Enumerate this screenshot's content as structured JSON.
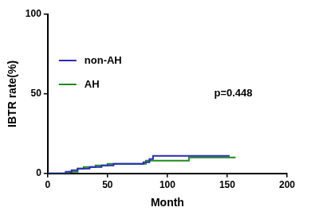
{
  "chart_data": {
    "type": "line",
    "x_label": "Month",
    "y_label": "IBTR rate(%)",
    "xlim": [
      0,
      200
    ],
    "xticks": [
      0,
      50,
      100,
      150,
      200
    ],
    "ylim": [
      0,
      100
    ],
    "yticks": [
      0,
      50,
      100
    ],
    "grid": false,
    "legend": "upper left",
    "annotations": [
      {
        "text": "p=0.448",
        "x": 139,
        "y": 50
      }
    ],
    "series": [
      {
        "name": "non-AH",
        "color": "#2a2ab8",
        "line_style": "stepped",
        "x": [
          0,
          15,
          20,
          25,
          35,
          45,
          55,
          80,
          85,
          88,
          152
        ],
        "values": [
          0,
          1,
          2,
          3,
          4,
          5,
          6,
          7,
          9,
          11,
          11
        ]
      },
      {
        "name": "AH",
        "color": "#1e8c1e",
        "line_style": "stepped",
        "x": [
          0,
          18,
          25,
          30,
          40,
          50,
          82,
          118,
          157
        ],
        "values": [
          0,
          1,
          3,
          4,
          5,
          6,
          8,
          10,
          10
        ]
      }
    ]
  }
}
